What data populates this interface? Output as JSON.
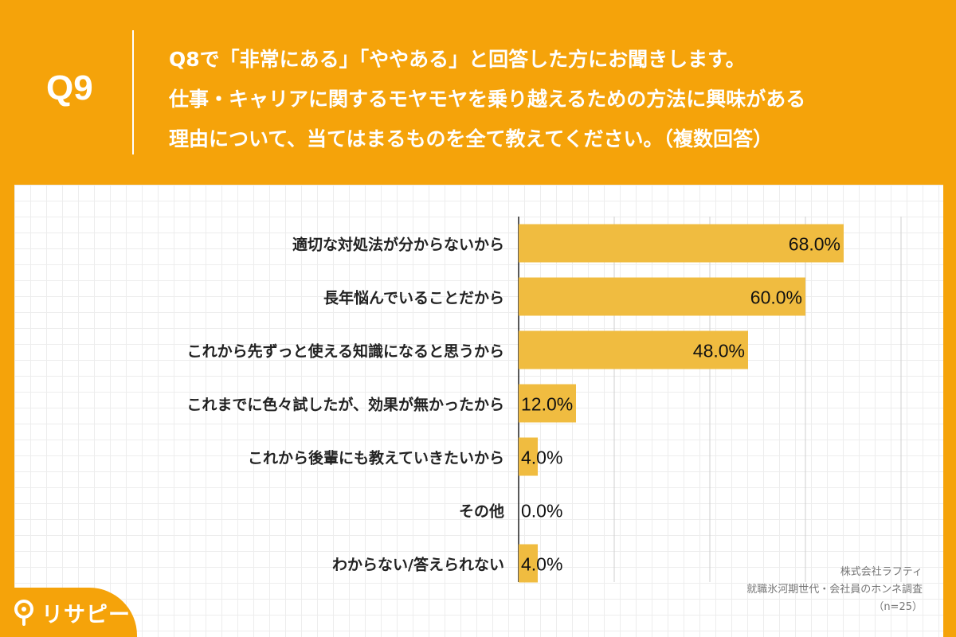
{
  "header": {
    "question_number": "Q9",
    "question_lines": [
      "Q8で「非常にある」「ややある」と回答した方にお聞きします。",
      "仕事・キャリアに関するモヤモヤを乗り越えるための方法に興味がある",
      "理由について、当てはまるものを全て教えてください。（複数回答）"
    ]
  },
  "brand": {
    "logo_text": "リサピー"
  },
  "credit": {
    "company": "株式会社ラフティ",
    "survey": "就職氷河期世代・会社員のホンネ調査",
    "sample": "（n=25）"
  },
  "colors": {
    "background": "#f5a30a",
    "bar": "#f0bc40",
    "text": "#222222"
  },
  "chart_data": {
    "type": "bar",
    "orientation": "horizontal",
    "categories": [
      "適切な対処法が分からないから",
      "長年悩んでいることだから",
      "これから先ずっと使える知識になると思うから",
      "これまでに色々試したが、効果が無かったから",
      "これから後輩にも教えていきたいから",
      "その他",
      "わからない/答えられない"
    ],
    "values": [
      68.0,
      60.0,
      48.0,
      12.0,
      4.0,
      0.0,
      4.0
    ],
    "value_labels": [
      "68.0%",
      "60.0%",
      "48.0%",
      "12.0%",
      "4.0%",
      "0.0%",
      "4.0%"
    ],
    "xlim": [
      0,
      100
    ],
    "grid": true
  }
}
